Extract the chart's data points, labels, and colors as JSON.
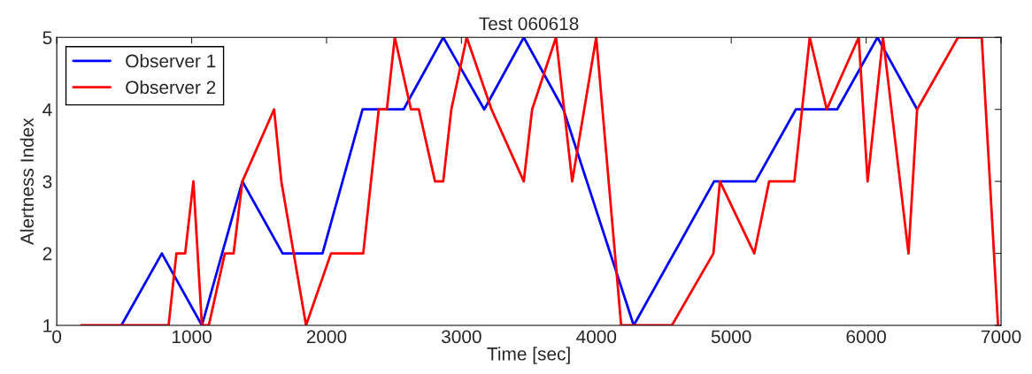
{
  "chart_data": {
    "type": "line",
    "title": "Test 060618",
    "xlabel": "Time [sec]",
    "ylabel": "Alertness Index",
    "xlim": [
      0,
      7000
    ],
    "xticks": [
      0,
      1000,
      2000,
      3000,
      4000,
      5000,
      6000,
      7000
    ],
    "ylim": [
      1,
      5
    ],
    "yticks": [
      1,
      2,
      3,
      4,
      5
    ],
    "grid": false,
    "legend": "top left",
    "line_style": "solid",
    "series": [
      {
        "name": "Observer 1",
        "color": "#0000ff",
        "x": [
          479,
          779,
          1076,
          1376,
          1674,
          1970,
          2267,
          2571,
          2865,
          3169,
          3462,
          3756,
          4277,
          4873,
          5180,
          5479,
          5785,
          6084,
          6378
        ],
        "values": [
          1,
          2,
          1,
          3,
          2,
          2,
          4,
          4,
          5,
          4,
          5,
          4,
          1,
          3,
          3,
          4,
          4,
          5,
          4
        ]
      },
      {
        "name": "Observer 2",
        "color": "#ff0000",
        "x": [
          181,
          829,
          887,
          952,
          1013,
          1076,
          1127,
          1246,
          1311,
          1376,
          1611,
          1665,
          1848,
          2033,
          2272,
          2387,
          2447,
          2506,
          2626,
          2684,
          2804,
          2865,
          2925,
          3039,
          3223,
          3462,
          3524,
          3701,
          3821,
          3999,
          4184,
          4560,
          4868,
          4916,
          5171,
          5281,
          5468,
          5582,
          5708,
          5945,
          6011,
          6125,
          6314,
          6378,
          6681,
          6857,
          6978
        ],
        "values": [
          1,
          1,
          2,
          2,
          3,
          1,
          1,
          2,
          2,
          3,
          4,
          3,
          1,
          2,
          2,
          4,
          4,
          5,
          4,
          4,
          3,
          3,
          4,
          5,
          4,
          3,
          4,
          5,
          3,
          5,
          1,
          1,
          2,
          3,
          2,
          3,
          3,
          5,
          4,
          5,
          3,
          5,
          2,
          4,
          5,
          5,
          1
        ]
      }
    ]
  }
}
